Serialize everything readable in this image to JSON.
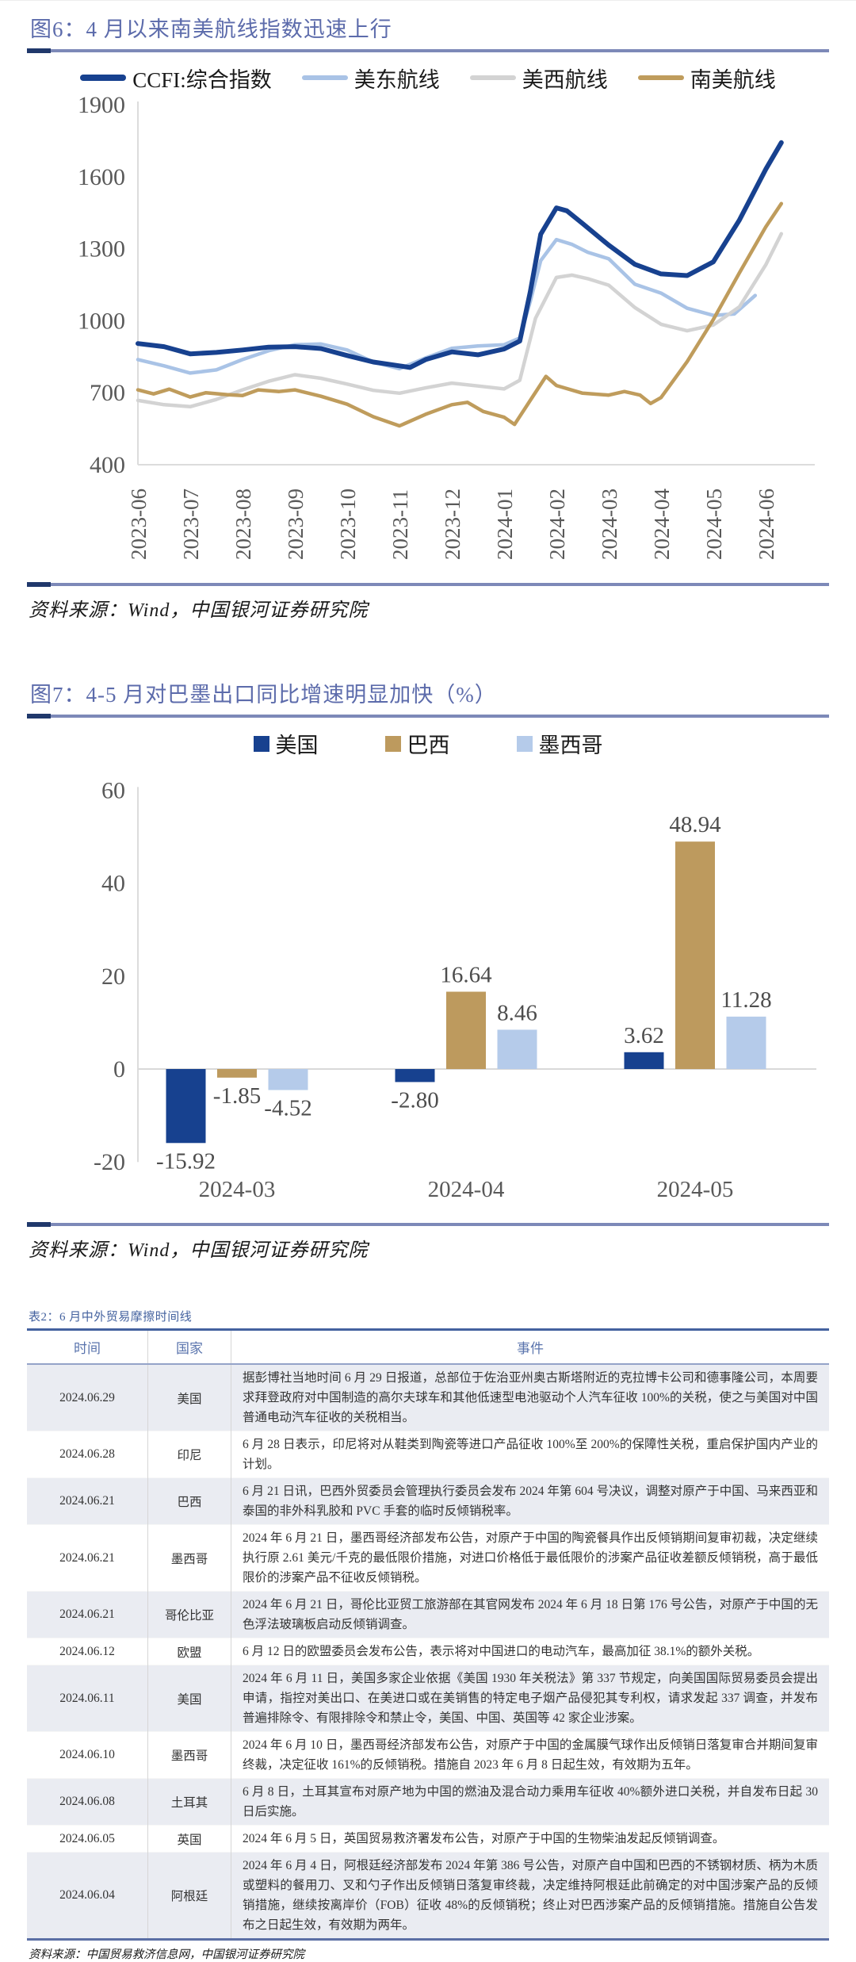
{
  "fig6": {
    "title": "图6：4 月以来南美航线指数迅速上行",
    "source": "资料来源：Wind，中国银河证券研究院",
    "chart_data": {
      "type": "line",
      "title": "4 月以来南美航线指数迅速上行",
      "x_tick_labels": [
        "2023-06",
        "2023-07",
        "2023-08",
        "2023-09",
        "2023-10",
        "2023-11",
        "2023-12",
        "2024-01",
        "2024-02",
        "2024-03",
        "2024-04",
        "2024-05",
        "2024-06"
      ],
      "y_ticks": [
        400,
        700,
        1000,
        1300,
        1600,
        1900
      ],
      "ylim": [
        400,
        1900
      ],
      "grid": false,
      "legend_position": "top",
      "series": [
        {
          "key": "us-east-route",
          "name": "美东航线",
          "color": "#a9c3e6",
          "width": 4.5,
          "points": [
            [
              0,
              838
            ],
            [
              0.5,
              812
            ],
            [
              1,
              782
            ],
            [
              1.5,
              795
            ],
            [
              2,
              838
            ],
            [
              2.5,
              875
            ],
            [
              3,
              900
            ],
            [
              3.5,
              903
            ],
            [
              4,
              878
            ],
            [
              4.5,
              828
            ],
            [
              5,
              800
            ],
            [
              5.5,
              845
            ],
            [
              6,
              885
            ],
            [
              6.5,
              895
            ],
            [
              7,
              900
            ],
            [
              7.3,
              928
            ],
            [
              7.5,
              1080
            ],
            [
              7.7,
              1250
            ],
            [
              8,
              1338
            ],
            [
              8.3,
              1318
            ],
            [
              8.6,
              1285
            ],
            [
              9,
              1258
            ],
            [
              9.5,
              1152
            ],
            [
              10,
              1115
            ],
            [
              10.5,
              1052
            ],
            [
              11,
              1022
            ],
            [
              11.4,
              1028
            ],
            [
              11.8,
              1105
            ]
          ]
        },
        {
          "key": "us-west-route",
          "name": "美西航线",
          "color": "#d3d3d3",
          "width": 4.5,
          "points": [
            [
              0,
              668
            ],
            [
              0.5,
              650
            ],
            [
              1,
              642
            ],
            [
              1.5,
              672
            ],
            [
              2,
              712
            ],
            [
              2.5,
              748
            ],
            [
              3,
              775
            ],
            [
              3.5,
              760
            ],
            [
              4,
              736
            ],
            [
              4.5,
              710
            ],
            [
              5,
              698
            ],
            [
              5.5,
              720
            ],
            [
              6,
              740
            ],
            [
              6.5,
              728
            ],
            [
              7,
              716
            ],
            [
              7.3,
              752
            ],
            [
              7.6,
              1010
            ],
            [
              8,
              1180
            ],
            [
              8.3,
              1190
            ],
            [
              8.6,
              1175
            ],
            [
              9,
              1148
            ],
            [
              9.5,
              1055
            ],
            [
              10,
              985
            ],
            [
              10.5,
              958
            ],
            [
              11,
              982
            ],
            [
              11.5,
              1058
            ],
            [
              12,
              1232
            ],
            [
              12.3,
              1362
            ]
          ]
        },
        {
          "key": "south-america-route",
          "name": "南美航线",
          "color": "#bf9c5c",
          "width": 4.5,
          "points": [
            [
              0,
              712
            ],
            [
              0.3,
              695
            ],
            [
              0.6,
              715
            ],
            [
              1,
              682
            ],
            [
              1.3,
              700
            ],
            [
              1.7,
              692
            ],
            [
              2,
              688
            ],
            [
              2.3,
              712
            ],
            [
              2.7,
              705
            ],
            [
              3,
              712
            ],
            [
              3.5,
              685
            ],
            [
              4,
              652
            ],
            [
              4.5,
              600
            ],
            [
              5,
              562
            ],
            [
              5.5,
              610
            ],
            [
              6,
              650
            ],
            [
              6.3,
              660
            ],
            [
              6.6,
              622
            ],
            [
              7,
              598
            ],
            [
              7.2,
              568
            ],
            [
              7.5,
              668
            ],
            [
              7.8,
              768
            ],
            [
              8,
              730
            ],
            [
              8.5,
              698
            ],
            [
              9,
              690
            ],
            [
              9.3,
              705
            ],
            [
              9.6,
              690
            ],
            [
              9.8,
              655
            ],
            [
              10,
              680
            ],
            [
              10.5,
              830
            ],
            [
              11,
              1005
            ],
            [
              11.5,
              1200
            ],
            [
              12,
              1390
            ],
            [
              12.3,
              1488
            ]
          ]
        },
        {
          "key": "ccfi-composite",
          "name": "CCFI:综合指数",
          "color": "#17418f",
          "width": 6,
          "points": [
            [
              0,
              905
            ],
            [
              0.5,
              892
            ],
            [
              1,
              862
            ],
            [
              1.5,
              868
            ],
            [
              2,
              878
            ],
            [
              2.5,
              890
            ],
            [
              3,
              892
            ],
            [
              3.5,
              884
            ],
            [
              4,
              855
            ],
            [
              4.5,
              828
            ],
            [
              5,
              812
            ],
            [
              5.2,
              805
            ],
            [
              5.5,
              838
            ],
            [
              6,
              870
            ],
            [
              6.5,
              858
            ],
            [
              7,
              882
            ],
            [
              7.3,
              915
            ],
            [
              7.5,
              1120
            ],
            [
              7.7,
              1360
            ],
            [
              8,
              1470
            ],
            [
              8.2,
              1458
            ],
            [
              8.5,
              1405
            ],
            [
              9,
              1315
            ],
            [
              9.5,
              1235
            ],
            [
              10,
              1195
            ],
            [
              10.5,
              1188
            ],
            [
              11,
              1245
            ],
            [
              11.5,
              1420
            ],
            [
              12,
              1630
            ],
            [
              12.3,
              1742
            ]
          ]
        }
      ],
      "legend_order": [
        "ccfi-composite",
        "us-east-route",
        "us-west-route",
        "south-america-route"
      ]
    }
  },
  "fig7": {
    "title": "图7：4-5 月对巴墨出口同比增速明显加快（%）",
    "source": "资料来源：Wind，中国银河证券研究院",
    "chart_data": {
      "type": "bar",
      "title": "4-5 月对巴墨出口同比增速明显加快（%）",
      "categories": [
        "2024-03",
        "2024-04",
        "2024-05"
      ],
      "y_ticks": [
        -20,
        0,
        20,
        40,
        60
      ],
      "ylim": [
        -20,
        60
      ],
      "grid": false,
      "legend_position": "top",
      "data_labels": true,
      "series": [
        {
          "key": "usa",
          "name": "美国",
          "color": "#17418f",
          "values": [
            -15.92,
            -2.8,
            3.62
          ]
        },
        {
          "key": "brazil",
          "name": "巴西",
          "color": "#bd9a5e",
          "values": [
            -1.85,
            16.64,
            48.94
          ]
        },
        {
          "key": "mexico",
          "name": "墨西哥",
          "color": "#b5cbea",
          "values": [
            -4.52,
            8.46,
            11.28
          ]
        }
      ]
    }
  },
  "table2": {
    "title": "表2：6 月中外贸易摩擦时间线",
    "source": "资料来源：中国贸易救济信息网，中国银河证券研究院",
    "columns": [
      "时间",
      "国家",
      "事件"
    ],
    "rows": [
      {
        "date": "2024.06.29",
        "country": "美国",
        "event": "据彭博社当地时间 6 月 29 日报道，总部位于佐治亚州奥古斯塔附近的克拉博卡公司和德事隆公司，本周要求拜登政府对中国制造的高尔夫球车和其他低速型电池驱动个人汽车征收 100%的关税，使之与美国对中国普通电动汽车征收的关税相当。"
      },
      {
        "date": "2024.06.28",
        "country": "印尼",
        "event": "6 月 28 日表示，印尼将对从鞋类到陶瓷等进口产品征收 100%至 200%的保障性关税，重启保护国内产业的计划。"
      },
      {
        "date": "2024.06.21",
        "country": "巴西",
        "event": "6 月 21 日讯，巴西外贸委员会管理执行委员会发布 2024 年第 604 号决议，调整对原产于中国、马来西亚和泰国的非外科乳胶和 PVC 手套的临时反倾销税率。"
      },
      {
        "date": "2024.06.21",
        "country": "墨西哥",
        "event": "2024 年 6 月 21 日，墨西哥经济部发布公告，对原产于中国的陶瓷餐具作出反倾销期间复审初裁，决定继续执行原 2.61 美元/千克的最低限价措施，对进口价格低于最低限价的涉案产品征收差额反倾销税，高于最低限价的涉案产品不征收反倾销税。"
      },
      {
        "date": "2024.06.21",
        "country": "哥伦比亚",
        "event": "2024 年 6 月 21 日，哥伦比亚贸工旅游部在其官网发布 2024 年 6 月 18 日第 176 号公告，对原产于中国的无色浮法玻璃板启动反倾销调查。"
      },
      {
        "date": "2024.06.12",
        "country": "欧盟",
        "event": "6 月 12 日的欧盟委员会发布公告，表示将对中国进口的电动汽车，最高加征 38.1%的额外关税。"
      },
      {
        "date": "2024.06.11",
        "country": "美国",
        "event": "2024 年 6 月 11 日，美国多家企业依据《美国 1930 年关税法》第 337 节规定，向美国国际贸易委员会提出申请，指控对美出口、在美进口或在美销售的特定电子烟产品侵犯其专利权，请求发起 337 调查，并发布普遍排除令、有限排除令和禁止令，美国、中国、英国等 42 家企业涉案。"
      },
      {
        "date": "2024.06.10",
        "country": "墨西哥",
        "event": "2024 年 6 月 10 日，墨西哥经济部发布公告，对原产于中国的金属膜气球作出反倾销日落复审合并期间复审终裁，决定征收 161%的反倾销税。措施自 2023 年 6 月 8 日起生效，有效期为五年。"
      },
      {
        "date": "2024.06.08",
        "country": "土耳其",
        "event": "6 月 8 日，土耳其宣布对原产地为中国的燃油及混合动力乘用车征收 40%额外进口关税，并自发布日起 30 日后实施。"
      },
      {
        "date": "2024.06.05",
        "country": "英国",
        "event": "2024 年 6 月 5 日，英国贸易救济署发布公告，对原产于中国的生物柴油发起反倾销调查。"
      },
      {
        "date": "2024.06.04",
        "country": "阿根廷",
        "event": "2024 年 6 月 4 日，阿根廷经济部发布 2024 年第 386 号公告，对原产自中国和巴西的不锈钢材质、柄为木质或塑料的餐用刀、叉和勺子作出反倾销日落复审终裁，决定维持阿根廷此前确定的对中国涉案产品的反倾销措施，继续按离岸价（FOB）征收 48%的反倾销税；终止对巴西涉案产品的反倾销措施。措施自公告发布之日起生效，有效期为两年。"
      }
    ]
  },
  "colors": {
    "accent_navy": "#17418f",
    "accent_tan": "#bd9a5e",
    "accent_lightblue": "#a9c3e6",
    "accent_gray": "#d3d3d3",
    "title_indigo": "#5c6bab",
    "rule_blue": "#7d89b8",
    "rule_dark": "#20386b",
    "table_stripe": "#eaecf2"
  }
}
